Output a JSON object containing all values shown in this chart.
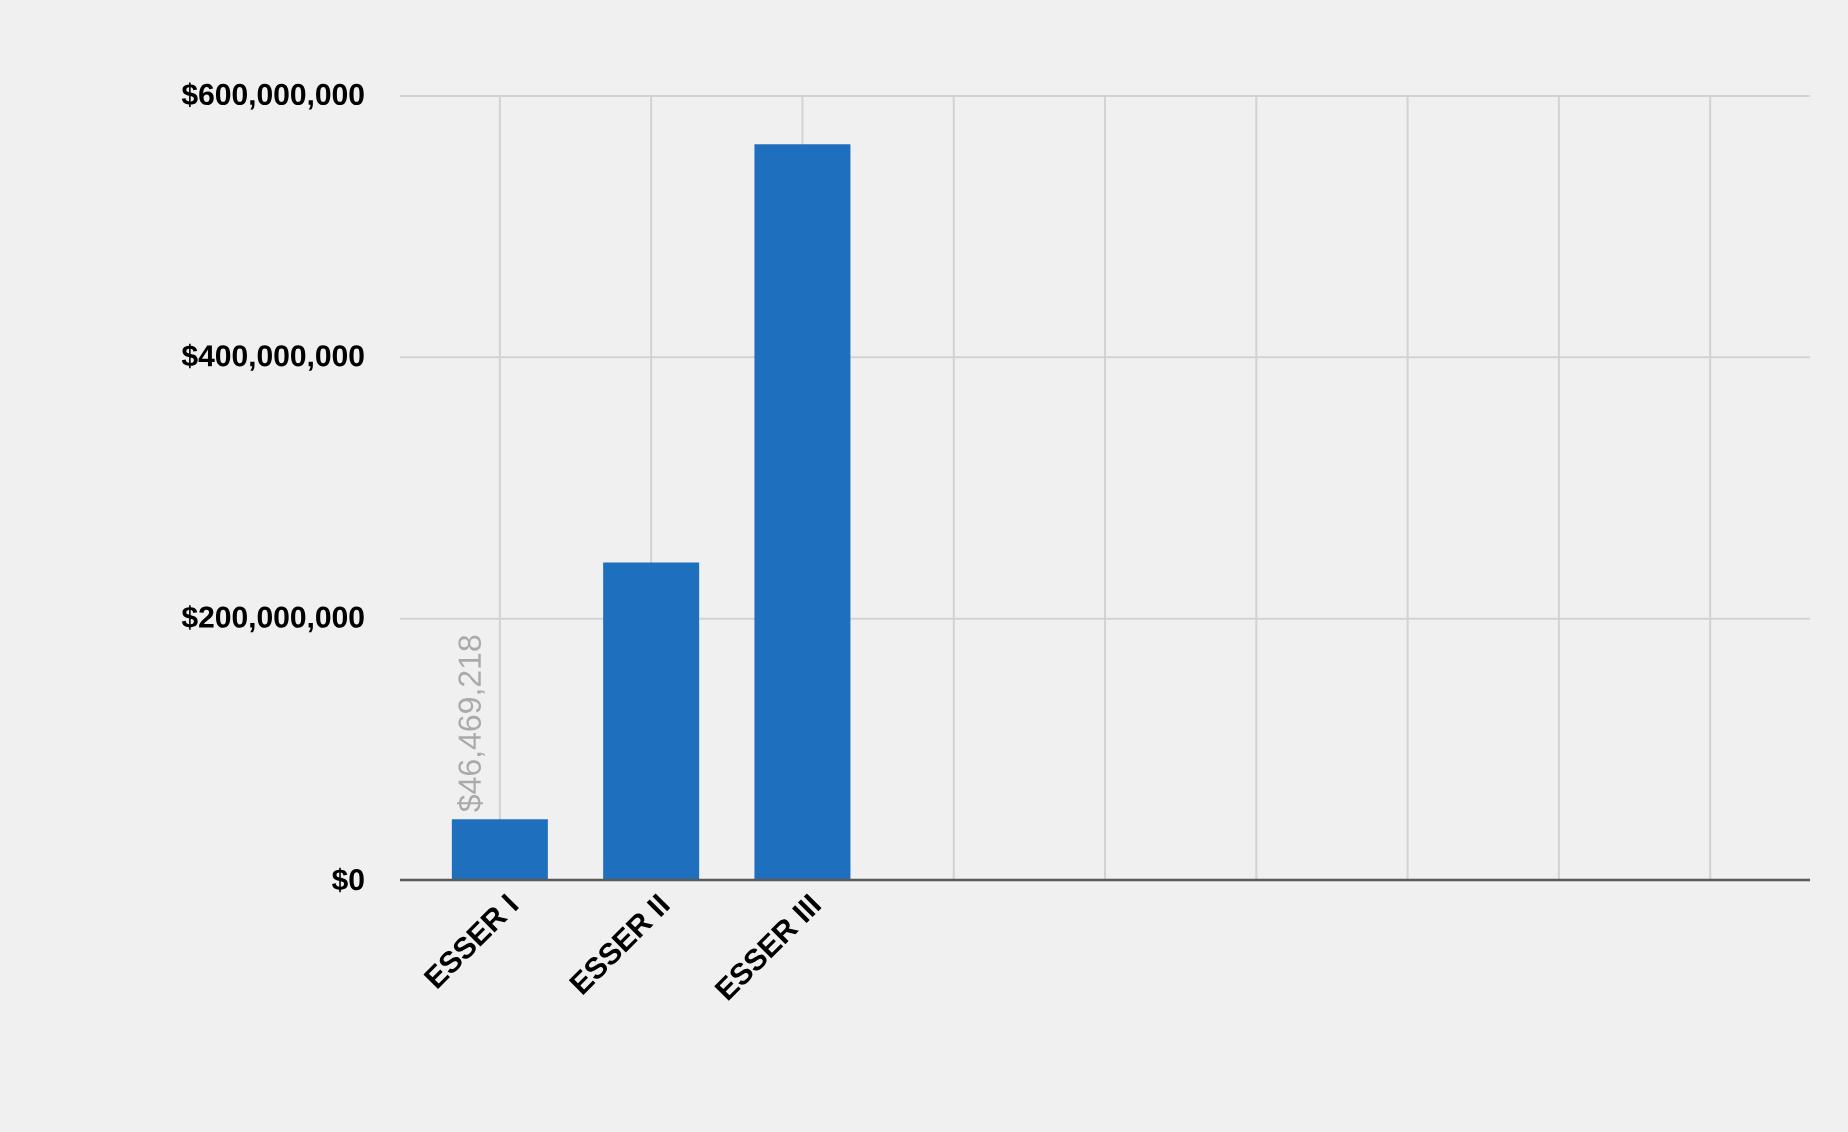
{
  "chart_data": {
    "type": "bar",
    "categories": [
      "ESSER I",
      "ESSER II",
      "ESSER III",
      null,
      null,
      null,
      null,
      null,
      null
    ],
    "values": [
      46469218,
      243000000,
      563000000,
      null,
      null,
      null,
      null,
      null,
      null
    ],
    "value_labels": [
      "$46,469,218",
      null,
      null,
      null,
      null,
      null,
      null,
      null,
      null
    ],
    "color": "#1f6fbf",
    "ylim": [
      0,
      600000000
    ],
    "yticks": [
      {
        "value": 0,
        "label": "$0"
      },
      {
        "value": 200000000,
        "label": "$200,000,000"
      },
      {
        "value": 400000000,
        "label": "$400,000,000"
      },
      {
        "value": 600000000,
        "label": "$600,000,000"
      }
    ],
    "grid": true
  }
}
